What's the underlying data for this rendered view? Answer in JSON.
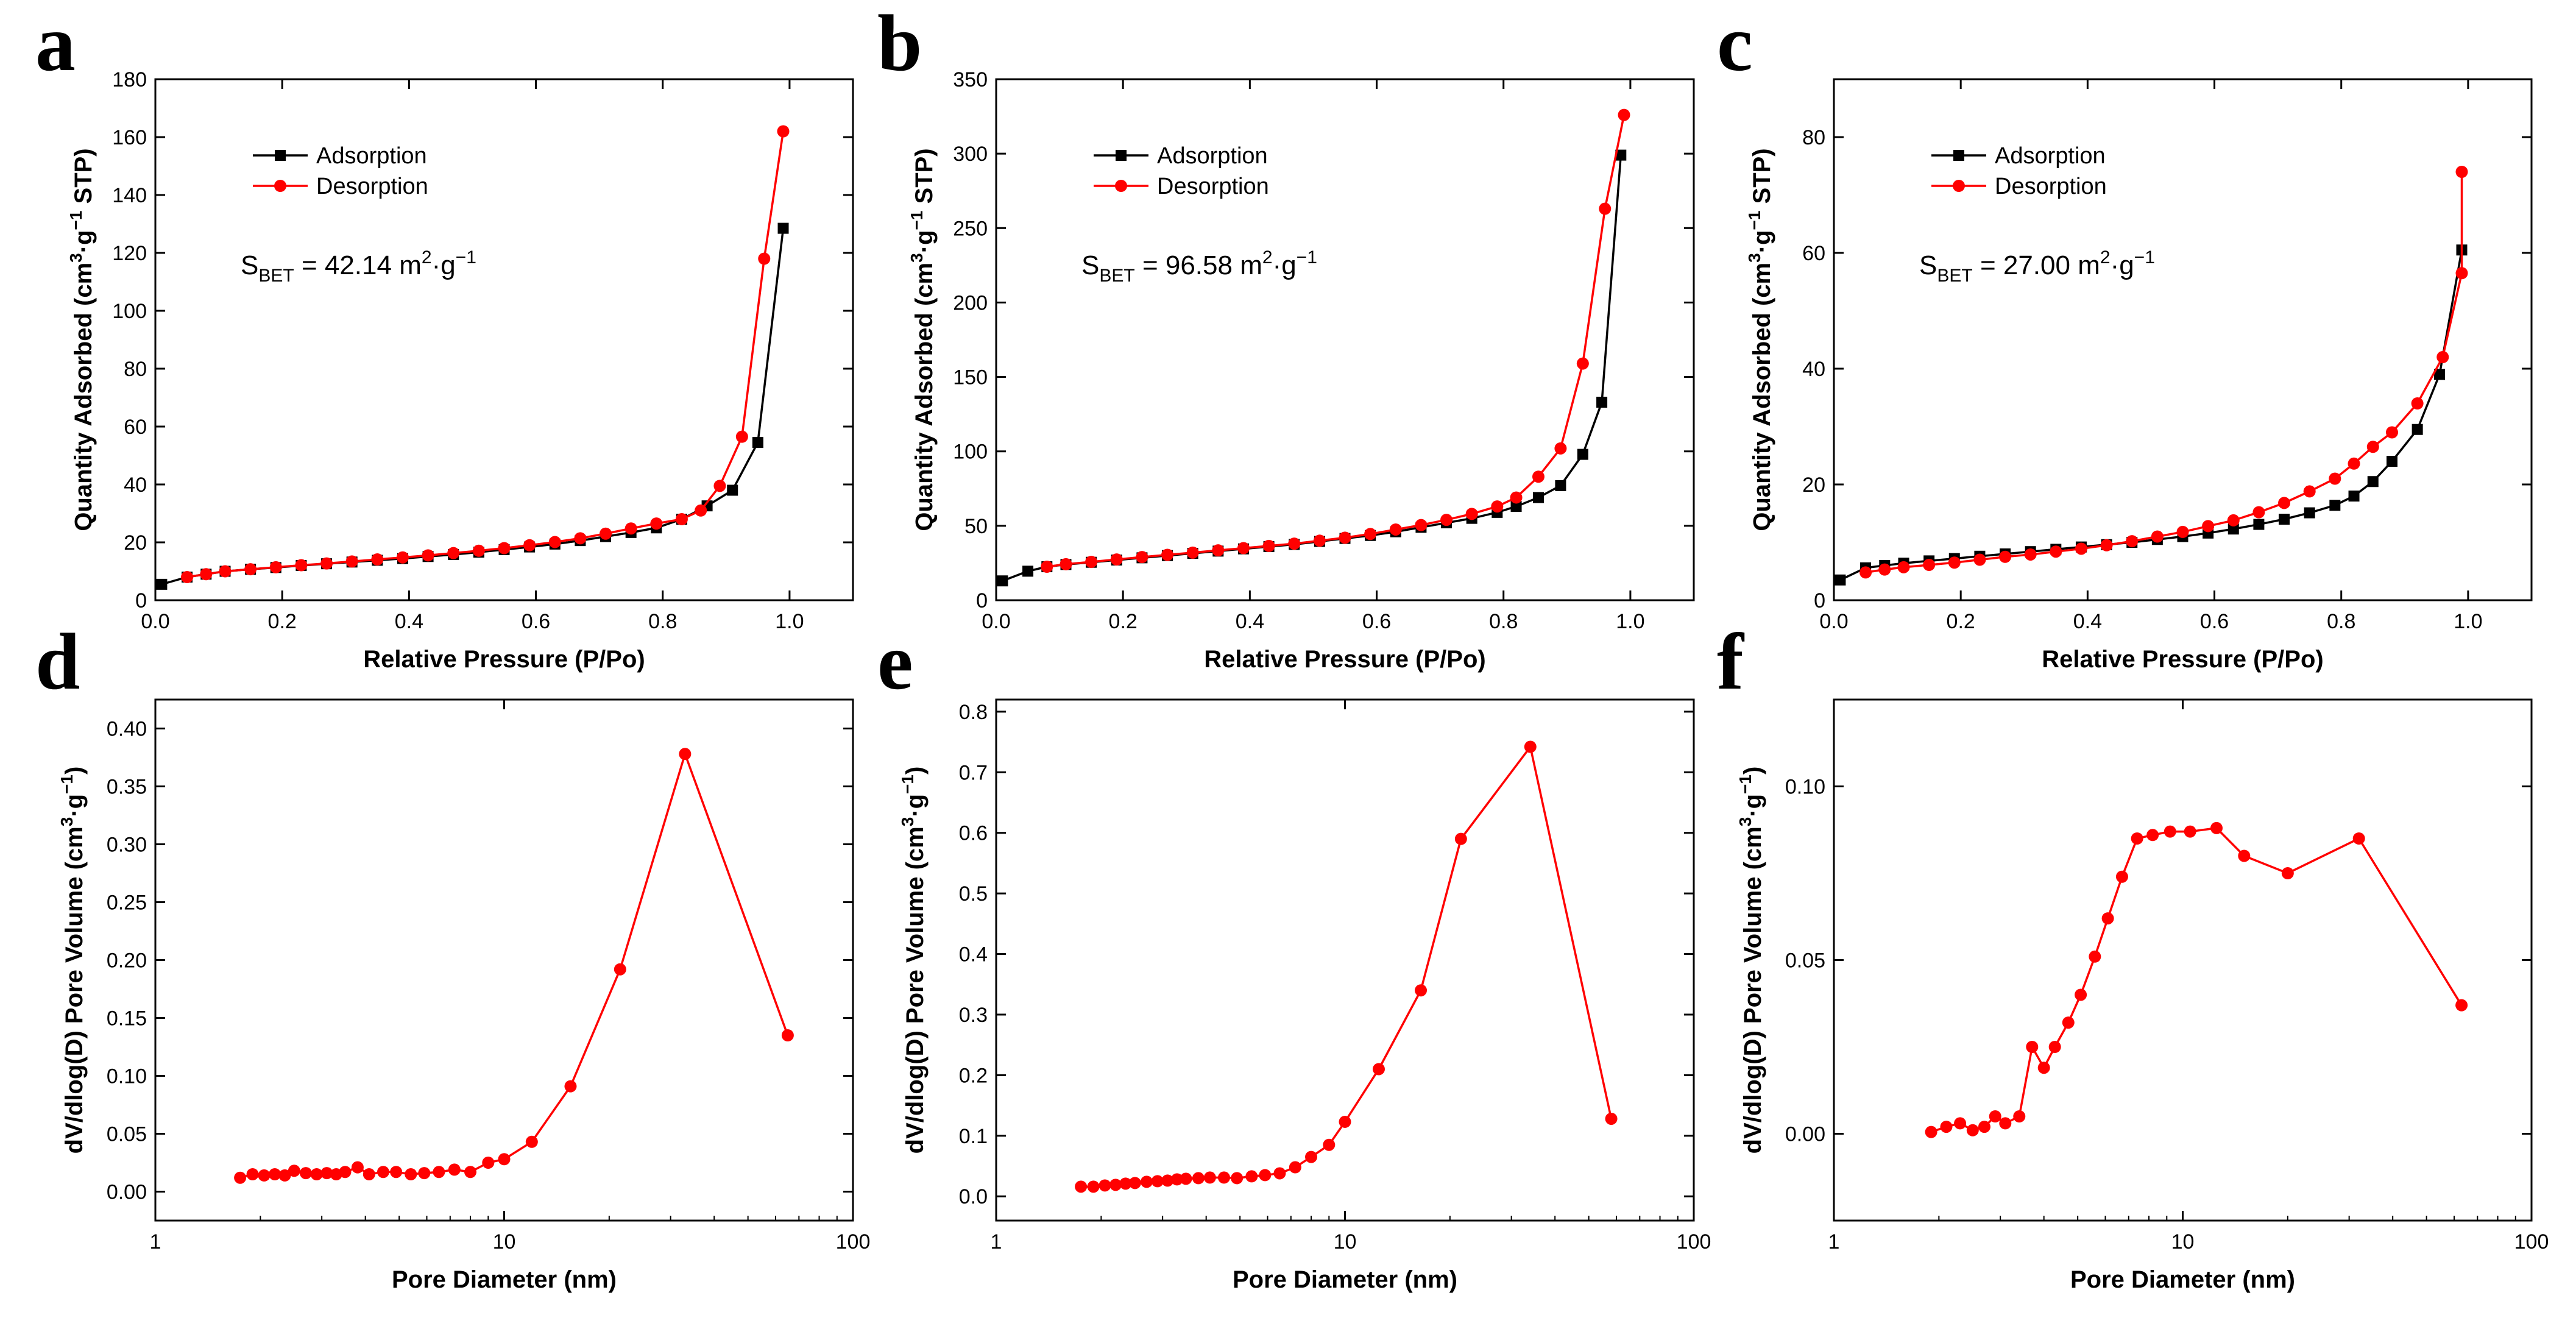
{
  "colors": {
    "adsorption": "#000000",
    "desorption": "#ff0000",
    "pore": "#ff0000"
  },
  "chart_data": [
    {
      "panel": "a",
      "type": "line",
      "xlabel": "Relative Pressure (P/Po)",
      "ylabel": [
        "Quantity Adsorbed (cm",
        "3",
        "·g",
        "−1",
        " STP)"
      ],
      "xlim": [
        0,
        1.1
      ],
      "ylim": [
        0,
        180
      ],
      "xticks": [
        0.0,
        0.2,
        0.4,
        0.6,
        0.8,
        1.0
      ],
      "xtick_labels": [
        "0.0",
        "0.2",
        "0.4",
        "0.6",
        "0.8",
        "1.0"
      ],
      "yticks": [
        0,
        20,
        40,
        60,
        80,
        100,
        120,
        140,
        160,
        180
      ],
      "ytick_labels": [
        "0",
        "20",
        "40",
        "60",
        "80",
        "100",
        "120",
        "140",
        "160",
        "180"
      ],
      "legend": [
        "Adsorption",
        "Desorption"
      ],
      "annotation": {
        "prefix": "S",
        "sub": "BET",
        "mid": " = 42.14 m",
        "sup": "2",
        "post": "·g",
        "sup2": "−1"
      },
      "series": [
        {
          "name": "Adsorption",
          "x": [
            0.01,
            0.05,
            0.08,
            0.11,
            0.15,
            0.19,
            0.23,
            0.27,
            0.31,
            0.35,
            0.39,
            0.43,
            0.47,
            0.51,
            0.55,
            0.59,
            0.63,
            0.67,
            0.71,
            0.75,
            0.79,
            0.83,
            0.87,
            0.91,
            0.95,
            0.99
          ],
          "y": [
            5.5,
            8,
            9,
            10,
            10.7,
            11.3,
            12,
            12.6,
            13.2,
            13.8,
            14.4,
            15.1,
            15.8,
            16.6,
            17.5,
            18.4,
            19.4,
            20.6,
            22,
            23.4,
            25,
            28,
            32.6,
            38,
            54.5,
            128.5
          ]
        },
        {
          "name": "Desorption",
          "x": [
            0.05,
            0.08,
            0.11,
            0.15,
            0.19,
            0.23,
            0.27,
            0.31,
            0.35,
            0.39,
            0.43,
            0.47,
            0.51,
            0.55,
            0.59,
            0.63,
            0.67,
            0.71,
            0.75,
            0.79,
            0.83,
            0.86,
            0.89,
            0.925,
            0.96,
            0.99
          ],
          "y": [
            8,
            9,
            10,
            10.7,
            11.4,
            12.1,
            12.7,
            13.4,
            14.1,
            14.8,
            15.5,
            16.3,
            17.1,
            18,
            19,
            20.1,
            21.4,
            23,
            24.8,
            26.5,
            28,
            31,
            39.5,
            56.5,
            118,
            162
          ]
        }
      ]
    },
    {
      "panel": "b",
      "type": "line",
      "xlabel": "Relative Pressure (P/Po)",
      "ylabel": [
        "Quantity Adsorbed (cm",
        "3",
        "·g",
        "−1",
        " STP)"
      ],
      "xlim": [
        0,
        1.1
      ],
      "ylim": [
        0,
        350
      ],
      "xticks": [
        0.0,
        0.2,
        0.4,
        0.6,
        0.8,
        1.0
      ],
      "xtick_labels": [
        "0.0",
        "0.2",
        "0.4",
        "0.6",
        "0.8",
        "1.0"
      ],
      "yticks": [
        0,
        50,
        100,
        150,
        200,
        250,
        300,
        350
      ],
      "ytick_labels": [
        "0",
        "50",
        "100",
        "150",
        "200",
        "250",
        "300",
        "350"
      ],
      "legend": [
        "Adsorption",
        "Desorption"
      ],
      "annotation": {
        "prefix": "S",
        "sub": "BET",
        "mid": " = 96.58 m",
        "sup": "2",
        "post": "·g",
        "sup2": "−1"
      },
      "series": [
        {
          "name": "Adsorption",
          "x": [
            0.01,
            0.05,
            0.08,
            0.11,
            0.15,
            0.19,
            0.23,
            0.27,
            0.31,
            0.35,
            0.39,
            0.43,
            0.47,
            0.51,
            0.55,
            0.59,
            0.63,
            0.67,
            0.71,
            0.75,
            0.79,
            0.82,
            0.855,
            0.89,
            0.925,
            0.955,
            0.985
          ],
          "y": [
            13,
            19.5,
            22.5,
            24,
            25.5,
            27,
            28.5,
            30,
            31.5,
            33,
            34.5,
            36,
            37.5,
            39.5,
            41.5,
            43.5,
            46,
            49,
            52,
            55,
            59,
            63,
            69,
            77,
            98,
            133,
            299
          ]
        },
        {
          "name": "Desorption",
          "x": [
            0.08,
            0.11,
            0.15,
            0.19,
            0.23,
            0.27,
            0.31,
            0.35,
            0.39,
            0.43,
            0.47,
            0.51,
            0.55,
            0.59,
            0.63,
            0.67,
            0.71,
            0.75,
            0.79,
            0.82,
            0.855,
            0.89,
            0.925,
            0.96,
            0.99
          ],
          "y": [
            22.5,
            24.2,
            25.8,
            27.4,
            29,
            30.5,
            32,
            33.5,
            35,
            36.5,
            38,
            40,
            42,
            44.5,
            47.5,
            50.5,
            54,
            58,
            63,
            69,
            83,
            102,
            159,
            263,
            326
          ]
        }
      ]
    },
    {
      "panel": "c",
      "type": "line",
      "xlabel": "Relative Pressure (P/Po)",
      "ylabel": [
        "Quantity Adsorbed (cm",
        "3",
        "·g",
        "−1",
        " STP)"
      ],
      "xlim": [
        0,
        1.1
      ],
      "ylim": [
        0,
        90
      ],
      "xticks": [
        0.0,
        0.2,
        0.4,
        0.6,
        0.8,
        1.0
      ],
      "xtick_labels": [
        "0.0",
        "0.2",
        "0.4",
        "0.6",
        "0.8",
        "1.0"
      ],
      "yticks": [
        0,
        20,
        40,
        60,
        80
      ],
      "ytick_labels": [
        "0",
        "20",
        "40",
        "60",
        "80"
      ],
      "legend": [
        "Adsorption",
        "Desorption"
      ],
      "annotation": {
        "prefix": "S",
        "sub": "BET",
        "mid": " = 27.00 m",
        "sup": "2",
        "post": "·g",
        "sup2": "−1"
      },
      "series": [
        {
          "name": "Adsorption",
          "x": [
            0.01,
            0.05,
            0.08,
            0.11,
            0.15,
            0.19,
            0.23,
            0.27,
            0.31,
            0.35,
            0.39,
            0.43,
            0.47,
            0.51,
            0.55,
            0.59,
            0.63,
            0.67,
            0.71,
            0.75,
            0.79,
            0.82,
            0.85,
            0.88,
            0.92,
            0.955,
            0.99
          ],
          "y": [
            3.5,
            5.6,
            6,
            6.4,
            6.8,
            7.2,
            7.6,
            8,
            8.4,
            8.8,
            9.2,
            9.6,
            10,
            10.5,
            11,
            11.6,
            12.3,
            13.1,
            14,
            15.1,
            16.4,
            18,
            20.5,
            24,
            29.5,
            39,
            60.5
          ]
        },
        {
          "name": "Desorption",
          "x": [
            0.05,
            0.08,
            0.11,
            0.15,
            0.19,
            0.23,
            0.27,
            0.31,
            0.35,
            0.39,
            0.43,
            0.47,
            0.51,
            0.55,
            0.59,
            0.63,
            0.67,
            0.71,
            0.75,
            0.79,
            0.82,
            0.85,
            0.88,
            0.92,
            0.96,
            0.99
          ],
          "y": [
            4.8,
            5.3,
            5.7,
            6.1,
            6.5,
            7,
            7.5,
            7.9,
            8.4,
            8.9,
            9.5,
            10.2,
            11,
            11.8,
            12.8,
            13.8,
            15.2,
            16.8,
            18.8,
            21,
            23.6,
            26.5,
            29,
            34,
            42,
            56.5
          ]
        },
        {
          "name": "Desorption tail",
          "x": [
            0.99
          ],
          "y": [
            74
          ]
        }
      ]
    },
    {
      "panel": "d",
      "type": "line",
      "xlabel": "Pore Diameter (nm)",
      "ylabel": [
        "dV/dlog(D) Pore Volume (cm",
        "3",
        "·g",
        "−1",
        ")"
      ],
      "xscale": "log",
      "xlim": [
        1,
        100
      ],
      "ylim": [
        -0.025,
        0.425
      ],
      "xticks": [
        1,
        10,
        100
      ],
      "xtick_labels": [
        "1",
        "10",
        "100"
      ],
      "yticks": [
        0.0,
        0.05,
        0.1,
        0.15,
        0.2,
        0.25,
        0.3,
        0.35,
        0.4
      ],
      "ytick_labels": [
        "0.00",
        "0.05",
        "0.10",
        "0.15",
        "0.20",
        "0.25",
        "0.30",
        "0.35",
        "0.40"
      ],
      "series": [
        {
          "name": "Pore size distribution",
          "x": [
            1.75,
            1.9,
            2.05,
            2.2,
            2.35,
            2.5,
            2.7,
            2.9,
            3.1,
            3.3,
            3.5,
            3.8,
            4.1,
            4.5,
            4.9,
            5.4,
            5.9,
            6.5,
            7.2,
            8,
            9,
            10,
            12,
            15.5,
            21.5,
            33,
            65
          ],
          "y": [
            0.012,
            0.015,
            0.014,
            0.015,
            0.014,
            0.018,
            0.016,
            0.015,
            0.016,
            0.015,
            0.017,
            0.021,
            0.015,
            0.017,
            0.017,
            0.015,
            0.016,
            0.017,
            0.019,
            0.017,
            0.025,
            0.028,
            0.043,
            0.091,
            0.192,
            0.378,
            0.135
          ]
        }
      ]
    },
    {
      "panel": "e",
      "type": "line",
      "xlabel": "Pore Diameter (nm)",
      "ylabel": [
        "dV/dlog(D) Pore Volume (cm",
        "3",
        "·g",
        "−1",
        ")"
      ],
      "xscale": "log",
      "xlim": [
        1,
        100
      ],
      "ylim": [
        -0.04,
        0.82
      ],
      "xticks": [
        1,
        10,
        100
      ],
      "xtick_labels": [
        "1",
        "10",
        "100"
      ],
      "yticks": [
        0.0,
        0.1,
        0.2,
        0.3,
        0.4,
        0.5,
        0.6,
        0.7,
        0.8
      ],
      "ytick_labels": [
        "0.0",
        "0.1",
        "0.2",
        "0.3",
        "0.4",
        "0.5",
        "0.6",
        "0.7",
        "0.8"
      ],
      "series": [
        {
          "name": "Pore size distribution",
          "x": [
            1.75,
            1.9,
            2.05,
            2.2,
            2.35,
            2.5,
            2.7,
            2.9,
            3.1,
            3.3,
            3.5,
            3.8,
            4.1,
            4.5,
            4.9,
            5.4,
            5.9,
            6.5,
            7.2,
            8,
            9,
            10,
            12.5,
            16.5,
            21.5,
            34,
            58
          ],
          "y": [
            0.016,
            0.016,
            0.018,
            0.019,
            0.021,
            0.022,
            0.024,
            0.025,
            0.026,
            0.028,
            0.029,
            0.03,
            0.031,
            0.031,
            0.03,
            0.033,
            0.035,
            0.038,
            0.048,
            0.065,
            0.085,
            0.123,
            0.21,
            0.34,
            0.59,
            0.742,
            0.128
          ]
        }
      ]
    },
    {
      "panel": "f",
      "type": "line",
      "xlabel": "Pore Diameter (nm)",
      "ylabel": [
        "dV/dlog(D) Pore Volume (cm",
        "3",
        "·g",
        "−1",
        ")"
      ],
      "xscale": "log",
      "xlim": [
        1,
        100
      ],
      "ylim": [
        -0.025,
        0.125
      ],
      "xticks": [
        1,
        10,
        100
      ],
      "xtick_labels": [
        "1",
        "10",
        "100"
      ],
      "yticks": [
        0.0,
        0.05,
        0.1
      ],
      "ytick_labels": [
        "0.00",
        "0.05",
        "0.10"
      ],
      "series": [
        {
          "name": "Pore size distribution",
          "x": [
            1.9,
            2.1,
            2.3,
            2.5,
            2.7,
            2.9,
            3.1,
            3.4,
            3.7,
            4.0,
            4.3,
            4.7,
            5.1,
            5.6,
            6.1,
            6.7,
            7.4,
            8.2,
            9.2,
            10.5,
            12.5,
            15,
            20,
            32,
            63
          ],
          "y": [
            0.0005,
            0.002,
            0.003,
            0.001,
            0.002,
            0.005,
            0.003,
            0.005,
            0.025,
            0.019,
            0.025,
            0.032,
            0.04,
            0.051,
            0.062,
            0.074,
            0.085,
            0.086,
            0.087,
            0.087,
            0.088,
            0.08,
            0.075,
            0.085,
            0.037
          ]
        }
      ]
    }
  ],
  "panel_letters": [
    "a",
    "b",
    "c",
    "d",
    "e",
    "f"
  ]
}
